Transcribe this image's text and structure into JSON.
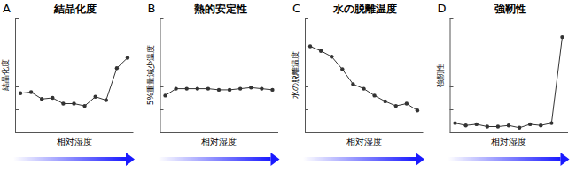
{
  "chart_data": [
    {
      "type": "line",
      "panel_label": "A",
      "title": "結晶化度",
      "y_label": "結晶化度",
      "x_label": "相対湿度",
      "x": [
        1,
        2,
        3,
        4,
        5,
        6,
        7,
        8,
        9,
        10,
        11
      ],
      "values": [
        3.4,
        3.5,
        2.9,
        3.0,
        2.5,
        2.5,
        2.3,
        3.1,
        2.8,
        5.6,
        6.5
      ],
      "xlim": [
        0.5,
        11.5
      ],
      "xticks": [],
      "ylim": [
        0,
        10
      ],
      "yticks": [
        0,
        2,
        4,
        6,
        8,
        10
      ],
      "tick_labels": false,
      "color": "#333333",
      "marker": "circle"
    },
    {
      "type": "line",
      "panel_label": "B",
      "title": "熱的安定性",
      "y_label": "5%重量減少温度",
      "x_label": "相対湿度",
      "x": [
        1,
        2,
        3,
        4,
        5,
        6,
        7,
        8,
        9,
        10,
        11
      ],
      "values": [
        3.2,
        3.8,
        3.8,
        3.8,
        3.8,
        3.7,
        3.7,
        3.8,
        3.9,
        3.8,
        3.7
      ],
      "xlim": [
        0.5,
        11.5
      ],
      "xticks": [],
      "ylim": [
        0,
        10
      ],
      "yticks": [
        0,
        2,
        4,
        6,
        8,
        10
      ],
      "tick_labels": false,
      "color": "#333333",
      "marker": "circle"
    },
    {
      "type": "line",
      "panel_label": "C",
      "title": "水の脱離温度",
      "y_label": "水の脱離温度",
      "x_label": "相対湿度",
      "x": [
        1,
        2,
        3,
        4,
        5,
        6,
        7,
        8,
        9,
        10,
        11
      ],
      "values": [
        7.5,
        7.1,
        6.6,
        5.5,
        4.2,
        3.8,
        3.2,
        2.7,
        2.3,
        2.5,
        1.9
      ],
      "xlim": [
        0.5,
        11.5
      ],
      "xticks": [],
      "ylim": [
        0,
        10
      ],
      "yticks": [
        0,
        2,
        4,
        6,
        8,
        10
      ],
      "tick_labels": false,
      "color": "#333333",
      "marker": "circle"
    },
    {
      "type": "line",
      "panel_label": "D",
      "title": "強靭性",
      "y_label": "強靭性",
      "x_label": "相対湿度",
      "x": [
        1,
        2,
        3,
        4,
        5,
        6,
        7,
        8,
        9,
        10,
        11
      ],
      "values": [
        0.8,
        0.6,
        0.7,
        0.5,
        0.5,
        0.6,
        0.4,
        0.7,
        0.6,
        0.8,
        8.3
      ],
      "xlim": [
        0.5,
        11.5
      ],
      "xticks": [],
      "ylim": [
        0,
        10
      ],
      "yticks": [
        0,
        2,
        4,
        6,
        8,
        10
      ],
      "tick_labels": false,
      "color": "#333333",
      "marker": "circle"
    }
  ]
}
